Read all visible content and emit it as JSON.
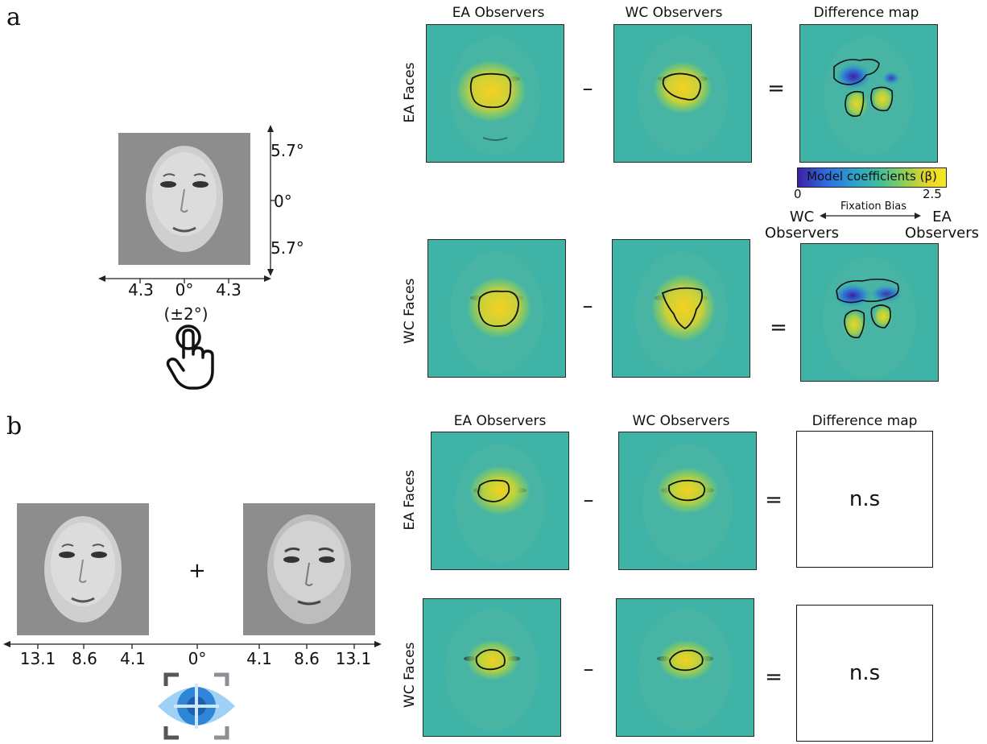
{
  "panel_a": {
    "letter": "a",
    "col_headers": [
      "EA Observers",
      "WC Observers",
      "Difference map"
    ],
    "row_headers": [
      "EA Faces",
      "WC Faces"
    ],
    "minus": "–",
    "equals": "=",
    "stimulus": {
      "y_ticks": [
        "5.7°",
        "0°",
        "5.7°"
      ],
      "x_ticks": [
        "4.3",
        "0°",
        "4.3"
      ],
      "jitter": "(±2°)"
    },
    "colorbar": {
      "title": "Model coefficients (β)",
      "min": "0",
      "max": "2.5",
      "bias_label": "Fixation Bias",
      "left_label": "WC\nObservers",
      "right_label": "EA\nObservers"
    }
  },
  "panel_b": {
    "letter": "b",
    "col_headers": [
      "EA Observers",
      "WC Observers",
      "Difference map"
    ],
    "row_headers": [
      "EA Faces",
      "WC Faces"
    ],
    "minus": "–",
    "equals": "=",
    "ns": [
      "n.s",
      "n.s"
    ],
    "fixation_cross": "+",
    "x_ticks": [
      "13.1",
      "8.6",
      "4.1",
      "0°",
      "4.1",
      "8.6",
      "13.1"
    ]
  },
  "colors": {
    "map_bg": "#3fb3a5",
    "hot_center": "#f5d11f",
    "hot_mid": "#9fcf4a",
    "diff_low": "#3b1fa6",
    "diff_mid": "#2f7fd6",
    "eye_icon_main": "#2f86d6",
    "eye_icon_light": "#9fd0f5"
  },
  "icons": [
    "touch-hand-icon",
    "eye-tracking-icon"
  ]
}
